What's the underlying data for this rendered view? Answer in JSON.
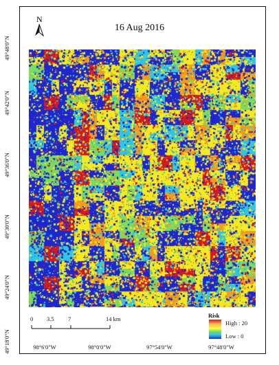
{
  "map": {
    "title": "16 Aug 2016",
    "north_label": "N",
    "lat_labels": [
      "49°48'0\"N",
      "49°42'0\"N",
      "49°36'0\"N",
      "49°30'0\"N",
      "49°24'0\"N",
      "49°18'0\"N"
    ],
    "lon_labels": [
      "98°6'0\"W",
      "98°0'0\"W",
      "97°54'0\"W",
      "97°48'0\"W"
    ],
    "scale": {
      "ticks": [
        "0",
        "3.5",
        "7",
        "14 km"
      ]
    },
    "legend": {
      "title": "Risk",
      "high": "High : 20",
      "low": "Low : 0"
    },
    "colors": {
      "blue": "#1d26cf",
      "cyan": "#2bc6e8",
      "green": "#7ddb5b",
      "yellow": "#f3ea1f",
      "orange": "#f59a1b",
      "red": "#d7191c"
    }
  }
}
